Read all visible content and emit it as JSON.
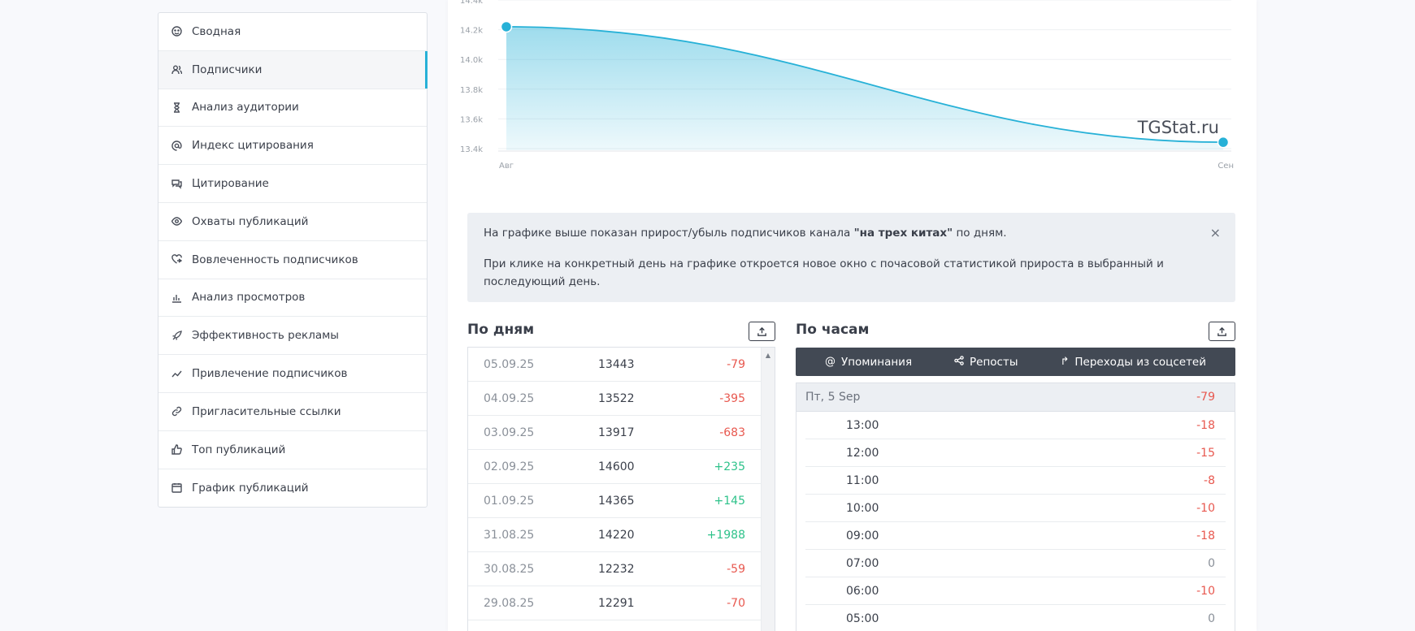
{
  "sidebar": {
    "items": [
      {
        "label": "Сводная",
        "icon": "dashboard-icon"
      },
      {
        "label": "Подписчики",
        "icon": "users-icon",
        "active": true
      },
      {
        "label": "Анализ аудитории",
        "icon": "hourglass-icon"
      },
      {
        "label": "Индекс цитирования",
        "icon": "at-icon"
      },
      {
        "label": "Цитирование",
        "icon": "chat-icon"
      },
      {
        "label": "Охваты публикаций",
        "icon": "eye-icon"
      },
      {
        "label": "Вовлеченность подписчиков",
        "icon": "heart-hand-icon"
      },
      {
        "label": "Анализ просмотров",
        "icon": "bar-chart-icon"
      },
      {
        "label": "Эффективность рекламы",
        "icon": "rocket-icon"
      },
      {
        "label": "Привлечение подписчиков",
        "icon": "trend-icon"
      },
      {
        "label": "Пригласительные ссылки",
        "icon": "link-icon"
      },
      {
        "label": "Топ публикаций",
        "icon": "thumbs-up-icon"
      },
      {
        "label": "График публикаций",
        "icon": "calendar-icon"
      }
    ]
  },
  "chart_data": {
    "type": "area",
    "x": [
      "Авг",
      "Сен"
    ],
    "y_ticks": [
      "14.4k",
      "14.2k",
      "14.0k",
      "13.8k",
      "13.6k",
      "13.4k"
    ],
    "ylim": [
      13400,
      14400
    ],
    "series": [
      {
        "values": [
          14220,
          13443
        ]
      }
    ],
    "watermark": "TGStat.ru",
    "color": "#27b1d7"
  },
  "info": {
    "line1_before": "На графике выше показан прирост/убыль подписчиков канала ",
    "line1_bold": "\"на трех китах\"",
    "line1_after": " по дням.",
    "line2": "При клике на конкретный день на графике откроется новое окно с почасовой статистикой прироста в выбранный и последующий день.",
    "close": "×"
  },
  "by_days": {
    "title": "По дням",
    "rows": [
      {
        "date": "05.09.25",
        "count": "13443",
        "delta": "-79"
      },
      {
        "date": "04.09.25",
        "count": "13522",
        "delta": "-395"
      },
      {
        "date": "03.09.25",
        "count": "13917",
        "delta": "-683"
      },
      {
        "date": "02.09.25",
        "count": "14600",
        "delta": "+235"
      },
      {
        "date": "01.09.25",
        "count": "14365",
        "delta": "+145"
      },
      {
        "date": "31.08.25",
        "count": "14220",
        "delta": "+1988"
      },
      {
        "date": "30.08.25",
        "count": "12232",
        "delta": "-59"
      },
      {
        "date": "29.08.25",
        "count": "12291",
        "delta": "-70"
      }
    ]
  },
  "by_hours": {
    "title": "По часам",
    "tabs": [
      {
        "label": "Упоминания",
        "icon": "@"
      },
      {
        "label": "Репосты",
        "icon": "⟨"
      },
      {
        "label": "Переходы из соцсетей",
        "icon": "↱"
      }
    ],
    "day_label": "Пт, 5 Sep",
    "day_delta": "-79",
    "rows": [
      {
        "time": "13:00",
        "delta": "-18"
      },
      {
        "time": "12:00",
        "delta": "-15"
      },
      {
        "time": "11:00",
        "delta": "-8"
      },
      {
        "time": "10:00",
        "delta": "-10"
      },
      {
        "time": "09:00",
        "delta": "-18"
      },
      {
        "time": "07:00",
        "delta": "0"
      },
      {
        "time": "06:00",
        "delta": "-10"
      },
      {
        "time": "05:00",
        "delta": "0"
      }
    ]
  }
}
